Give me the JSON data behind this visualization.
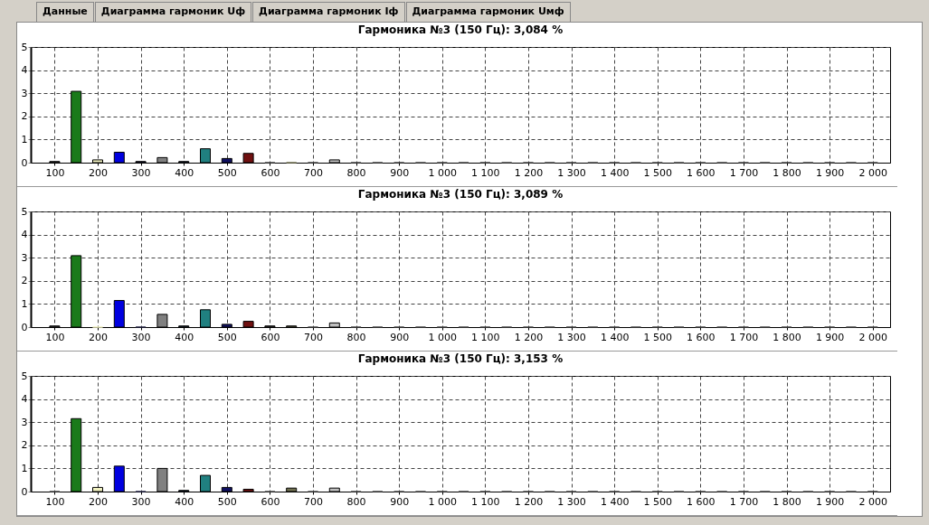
{
  "chart_data": [
    {
      "type": "bar",
      "title": "Гармоника №3 (150 Гц): 3,084 %",
      "annotations": [
        "Данные",
        "Диаграмма гармоник Uф",
        "Диаграмма гармоник Iф",
        "Диаграмма гармоник Uмф"
      ],
      "x": [
        100,
        150,
        200,
        250,
        300,
        350,
        400,
        450,
        500,
        550,
        600,
        650,
        700,
        750,
        800,
        850,
        900,
        950,
        1000,
        1050,
        1100,
        1150,
        1200,
        1250,
        1300,
        1350,
        1400,
        1450,
        1500,
        1550,
        1600,
        1650,
        1700,
        1750,
        1800,
        1850,
        1900,
        1950,
        2000
      ],
      "values": [
        0.05,
        3.084,
        0.12,
        0.45,
        0.05,
        0.22,
        0.05,
        0.6,
        0.18,
        0.4,
        0,
        0,
        0,
        0.12,
        0,
        0,
        0,
        0,
        0,
        0,
        0,
        0,
        0,
        0,
        0,
        0,
        0,
        0,
        0,
        0,
        0,
        0,
        0,
        0,
        0,
        0,
        0,
        0,
        0
      ],
      "colors": [
        "#404040",
        "#1a7a1a",
        "#f0f0c0",
        "#0000e0",
        "#202040",
        "#808080",
        "#203040",
        "#208080",
        "#101060",
        "#701010",
        "#404040",
        "#707050",
        "#404040",
        "#c0c0c0",
        "#404040",
        "#404040",
        "#404040",
        "#404040",
        "#404040",
        "#404040",
        "#404040",
        "#404040",
        "#404040",
        "#404040",
        "#404040",
        "#404040",
        "#404040",
        "#404040",
        "#404040",
        "#404040",
        "#404040",
        "#404040",
        "#404040",
        "#404040",
        "#404040",
        "#404040",
        "#404040",
        "#404040",
        "#404040"
      ],
      "xlim": [
        55,
        2030
      ],
      "ylim": [
        0,
        5
      ],
      "yticks": [
        0,
        1,
        2,
        3,
        4,
        5
      ],
      "xticks": [
        100,
        200,
        300,
        400,
        500,
        600,
        700,
        800,
        900,
        {
          "value": 1000,
          "label": "1 000"
        },
        {
          "value": 1100,
          "label": "1 100"
        },
        {
          "value": 1200,
          "label": "1 200"
        },
        {
          "value": 1300,
          "label": "1 300"
        },
        {
          "value": 1400,
          "label": "1 400"
        },
        {
          "value": 1500,
          "label": "1 500"
        },
        {
          "value": 1600,
          "label": "1 600"
        },
        {
          "value": 1700,
          "label": "1 700"
        },
        {
          "value": 1800,
          "label": "1 800"
        },
        {
          "value": 1900,
          "label": "1 900"
        },
        {
          "value": 2000,
          "label": "2 000"
        }
      ],
      "grid": true
    },
    {
      "type": "bar",
      "title": "Гармоника №3 (150 Гц): 3,089 %",
      "x": [
        100,
        150,
        200,
        250,
        300,
        350,
        400,
        450,
        500,
        550,
        600,
        650,
        700,
        750,
        800,
        850,
        900,
        950,
        1000,
        1050,
        1100,
        1150,
        1200,
        1250,
        1300,
        1350,
        1400,
        1450,
        1500,
        1550,
        1600,
        1650,
        1700,
        1750,
        1800,
        1850,
        1900,
        1950,
        2000
      ],
      "values": [
        0.05,
        3.089,
        0,
        1.15,
        0,
        0.55,
        0.05,
        0.75,
        0.12,
        0.25,
        0.05,
        0.05,
        0,
        0.18,
        0,
        0,
        0,
        0,
        0,
        0,
        0,
        0,
        0,
        0,
        0,
        0,
        0,
        0,
        0,
        0,
        0,
        0,
        0,
        0,
        0,
        0,
        0,
        0,
        0
      ],
      "colors": [
        "#404040",
        "#1a7a1a",
        "#f0f0c0",
        "#0000e0",
        "#202040",
        "#808080",
        "#203040",
        "#208080",
        "#101060",
        "#701010",
        "#404040",
        "#707050",
        "#404040",
        "#c0c0c0",
        "#404040",
        "#404040",
        "#404040",
        "#404040",
        "#404040",
        "#404040",
        "#404040",
        "#404040",
        "#404040",
        "#404040",
        "#404040",
        "#404040",
        "#404040",
        "#404040",
        "#404040",
        "#404040",
        "#404040",
        "#404040",
        "#404040",
        "#404040",
        "#404040",
        "#404040",
        "#404040",
        "#404040",
        "#404040"
      ],
      "xlim": [
        55,
        2030
      ],
      "ylim": [
        0,
        5
      ],
      "yticks": [
        0,
        1,
        2,
        3,
        4,
        5
      ],
      "xticks": [
        100,
        200,
        300,
        400,
        500,
        600,
        700,
        800,
        900,
        {
          "value": 1000,
          "label": "1 000"
        },
        {
          "value": 1100,
          "label": "1 100"
        },
        {
          "value": 1200,
          "label": "1 200"
        },
        {
          "value": 1300,
          "label": "1 300"
        },
        {
          "value": 1400,
          "label": "1 400"
        },
        {
          "value": 1500,
          "label": "1 500"
        },
        {
          "value": 1600,
          "label": "1 600"
        },
        {
          "value": 1700,
          "label": "1 700"
        },
        {
          "value": 1800,
          "label": "1 800"
        },
        {
          "value": 1900,
          "label": "1 900"
        },
        {
          "value": 2000,
          "label": "2 000"
        }
      ],
      "grid": true
    },
    {
      "type": "bar",
      "title": "Гармоника №3 (150 Гц): 3,153 %",
      "x": [
        100,
        150,
        200,
        250,
        300,
        350,
        400,
        450,
        500,
        550,
        600,
        650,
        700,
        750,
        800,
        850,
        900,
        950,
        1000,
        1050,
        1100,
        1150,
        1200,
        1250,
        1300,
        1350,
        1400,
        1450,
        1500,
        1550,
        1600,
        1650,
        1700,
        1750,
        1800,
        1850,
        1900,
        1950,
        2000
      ],
      "values": [
        0,
        3.153,
        0.18,
        1.1,
        0,
        1.0,
        0.05,
        0.7,
        0.18,
        0.1,
        0,
        0.15,
        0,
        0.15,
        0,
        0,
        0,
        0,
        0,
        0,
        0,
        0,
        0,
        0,
        0,
        0,
        0,
        0,
        0,
        0,
        0,
        0,
        0,
        0,
        0,
        0,
        0,
        0,
        0
      ],
      "colors": [
        "#404040",
        "#1a7a1a",
        "#f0f0c0",
        "#0000e0",
        "#202040",
        "#808080",
        "#203040",
        "#208080",
        "#101060",
        "#701010",
        "#404040",
        "#707050",
        "#404040",
        "#c0c0c0",
        "#404040",
        "#404040",
        "#404040",
        "#404040",
        "#404040",
        "#404040",
        "#404040",
        "#404040",
        "#404040",
        "#404040",
        "#404040",
        "#404040",
        "#404040",
        "#404040",
        "#404040",
        "#404040",
        "#404040",
        "#404040",
        "#404040",
        "#404040",
        "#404040",
        "#404040",
        "#404040",
        "#404040",
        "#404040"
      ],
      "xlim": [
        55,
        2030
      ],
      "ylim": [
        0,
        5
      ],
      "yticks": [
        0,
        1,
        2,
        3,
        4,
        5
      ],
      "xticks": [
        100,
        200,
        300,
        400,
        500,
        600,
        700,
        800,
        900,
        {
          "value": 1000,
          "label": "1 000"
        },
        {
          "value": 1100,
          "label": "1 100"
        },
        {
          "value": 1200,
          "label": "1 200"
        },
        {
          "value": 1300,
          "label": "1 300"
        },
        {
          "value": 1400,
          "label": "1 400"
        },
        {
          "value": 1500,
          "label": "1 500"
        },
        {
          "value": 1600,
          "label": "1 600"
        },
        {
          "value": 1700,
          "label": "1 700"
        },
        {
          "value": 1800,
          "label": "1 800"
        },
        {
          "value": 1900,
          "label": "1 900"
        },
        {
          "value": 2000,
          "label": "2 000"
        }
      ],
      "grid": true
    }
  ]
}
